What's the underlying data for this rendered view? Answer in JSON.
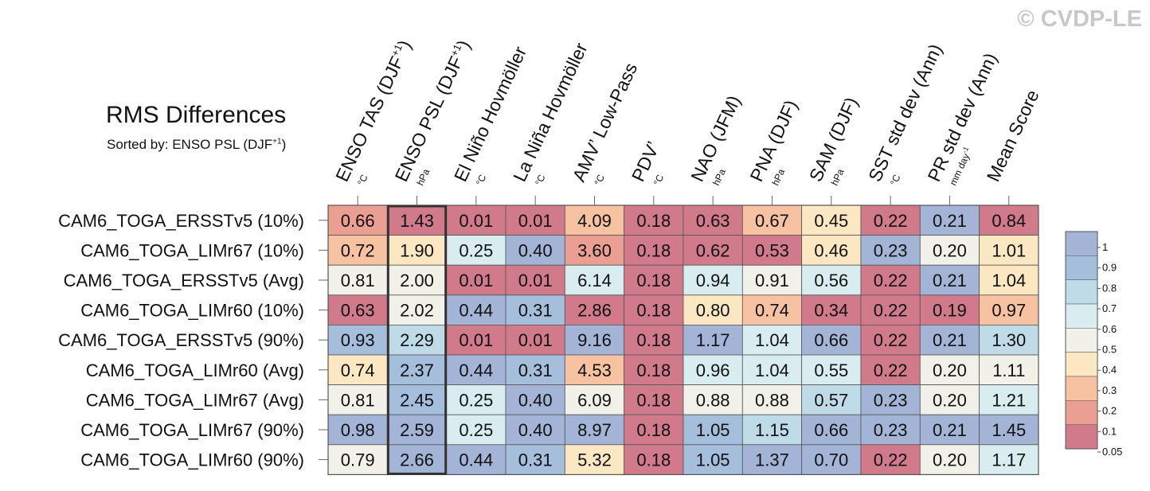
{
  "watermark": "© CVDP-LE",
  "header": {
    "title": "RMS Differences",
    "subtitle_prefix": "Sorted by: ENSO PSL (DJF",
    "subtitle_sup": "+1"
  },
  "colors": {
    "scale": [
      "#d07a8c",
      "#eb9f93",
      "#f6c2a2",
      "#fce7c3",
      "#f2f1e9",
      "#d9edf1",
      "#c0dbe8",
      "#a4bedb",
      "#a3b4d6"
    ],
    "grid": "#555555",
    "highlight": "#333333"
  },
  "chart_data": {
    "type": "heatmap",
    "title": "RMS Differences",
    "sorted_by": "ENSO PSL (DJF+1)",
    "highlight_column": 1,
    "columns": [
      {
        "name": "ENSO TAS (DJF",
        "sup": "+1",
        "close": ")",
        "unit": "°C",
        "unit_sup": ""
      },
      {
        "name": "ENSO PSL (DJF",
        "sup": "+1",
        "close": ")",
        "unit": "hPa",
        "unit_sup": ""
      },
      {
        "name": "El Niño Hovmöller",
        "sup": "",
        "close": "",
        "unit": "°C",
        "unit_sup": ""
      },
      {
        "name": "La Niña Hovmöller",
        "sup": "",
        "close": "",
        "unit": "°C",
        "unit_sup": ""
      },
      {
        "name": "AMV’ Low-Pass",
        "sup": "",
        "close": "",
        "unit": "°C",
        "unit_sup": ""
      },
      {
        "name": "PDV’",
        "sup": "",
        "close": "",
        "unit": "°C",
        "unit_sup": ""
      },
      {
        "name": "NAO (JFM)",
        "sup": "",
        "close": "",
        "unit": "hPa",
        "unit_sup": ""
      },
      {
        "name": "PNA (DJF)",
        "sup": "",
        "close": "",
        "unit": "hPa",
        "unit_sup": ""
      },
      {
        "name": "SAM (DJF)",
        "sup": "",
        "close": "",
        "unit": "hPa",
        "unit_sup": ""
      },
      {
        "name": "SST std dev (Ann)",
        "sup": "",
        "close": "",
        "unit": "°C",
        "unit_sup": ""
      },
      {
        "name": "PR std dev (Ann)",
        "sup": "",
        "close": "",
        "unit": "mm day",
        "unit_sup": "-1"
      },
      {
        "name": "Mean Score",
        "sup": "",
        "close": "",
        "unit": "",
        "unit_sup": ""
      }
    ],
    "rows": [
      "CAM6_TOGA_ERSSTv5 (10%)",
      "CAM6_TOGA_LIMr67 (10%)",
      "CAM6_TOGA_ERSSTv5 (Avg)",
      "CAM6_TOGA_LIMr60 (10%)",
      "CAM6_TOGA_ERSSTv5 (90%)",
      "CAM6_TOGA_LIMr60 (Avg)",
      "CAM6_TOGA_LIMr67 (Avg)",
      "CAM6_TOGA_LIMr67 (90%)",
      "CAM6_TOGA_LIMr60 (90%)"
    ],
    "values": [
      [
        "0.66",
        "1.43",
        "0.01",
        "0.01",
        "4.09",
        "0.18",
        "0.63",
        "0.67",
        "0.45",
        "0.22",
        "0.21",
        "0.84"
      ],
      [
        "0.72",
        "1.90",
        "0.25",
        "0.40",
        "3.60",
        "0.18",
        "0.62",
        "0.53",
        "0.46",
        "0.23",
        "0.20",
        "1.01"
      ],
      [
        "0.81",
        "2.00",
        "0.01",
        "0.01",
        "6.14",
        "0.18",
        "0.94",
        "0.91",
        "0.56",
        "0.22",
        "0.21",
        "1.04"
      ],
      [
        "0.63",
        "2.02",
        "0.44",
        "0.31",
        "2.86",
        "0.18",
        "0.80",
        "0.74",
        "0.34",
        "0.22",
        "0.19",
        "0.97"
      ],
      [
        "0.93",
        "2.29",
        "0.01",
        "0.01",
        "9.16",
        "0.18",
        "1.17",
        "1.04",
        "0.66",
        "0.22",
        "0.21",
        "1.30"
      ],
      [
        "0.74",
        "2.37",
        "0.44",
        "0.31",
        "4.53",
        "0.18",
        "0.96",
        "1.04",
        "0.55",
        "0.22",
        "0.20",
        "1.11"
      ],
      [
        "0.81",
        "2.45",
        "0.25",
        "0.40",
        "6.09",
        "0.18",
        "0.88",
        "0.88",
        "0.57",
        "0.23",
        "0.20",
        "1.21"
      ],
      [
        "0.98",
        "2.59",
        "0.25",
        "0.40",
        "8.97",
        "0.18",
        "1.05",
        "1.15",
        "0.66",
        "0.23",
        "0.21",
        "1.45"
      ],
      [
        "0.79",
        "2.66",
        "0.44",
        "0.31",
        "5.32",
        "0.18",
        "1.05",
        "1.37",
        "0.70",
        "0.22",
        "0.20",
        "1.17"
      ]
    ],
    "legend": {
      "levels": [
        "1",
        "0.9",
        "0.8",
        "0.7",
        "0.6",
        "0.5",
        "0.4",
        "0.3",
        "0.2",
        "0.1",
        "0.05"
      ],
      "breaks": [
        1,
        0.9,
        0.8,
        0.7,
        0.6,
        0.5,
        0.4,
        0.3,
        0.2,
        0.1,
        0.05
      ]
    }
  }
}
